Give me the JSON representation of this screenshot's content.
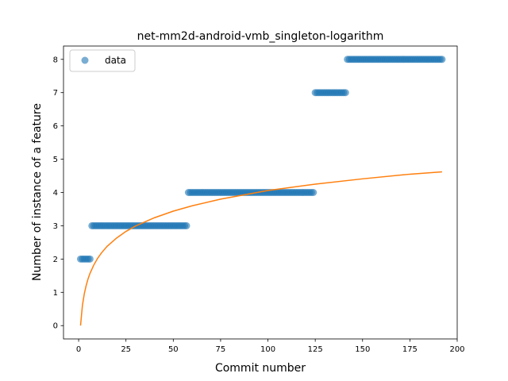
{
  "chart_data": {
    "type": "scatter",
    "title": "net-mm2d-android-vmb_singleton-logarithm",
    "xlabel": "Commit number",
    "ylabel": "Number of instance of a feature",
    "xlim": [
      -8,
      200
    ],
    "ylim": [
      -0.4,
      8.4
    ],
    "xticks": [
      0,
      25,
      50,
      75,
      100,
      125,
      150,
      175,
      200
    ],
    "yticks": [
      0,
      1,
      2,
      3,
      4,
      5,
      6,
      7,
      8
    ],
    "legend": {
      "position": "top-left",
      "entries": [
        "data"
      ]
    },
    "series": [
      {
        "name": "data",
        "kind": "points",
        "color": "#1f77b4",
        "segments": [
          {
            "x_start": 1,
            "x_end": 6,
            "y": 2
          },
          {
            "x_start": 7,
            "x_end": 57,
            "y": 3
          },
          {
            "x_start": 58,
            "x_end": 124,
            "y": 4
          },
          {
            "x_start": 125,
            "x_end": 141,
            "y": 7
          },
          {
            "x_start": 142,
            "x_end": 192,
            "y": 8
          }
        ]
      },
      {
        "kind": "line",
        "color": "#ff7f0e",
        "x": [
          1,
          2,
          3,
          4,
          5,
          6,
          8,
          10,
          12,
          15,
          20,
          25,
          30,
          40,
          50,
          60,
          75,
          100,
          125,
          150,
          175,
          192
        ],
        "y": [
          0,
          0.61,
          0.96,
          1.21,
          1.41,
          1.57,
          1.82,
          2.02,
          2.18,
          2.38,
          2.63,
          2.83,
          2.99,
          3.24,
          3.44,
          3.6,
          3.8,
          4.06,
          4.25,
          4.41,
          4.55,
          4.62
        ]
      }
    ]
  }
}
